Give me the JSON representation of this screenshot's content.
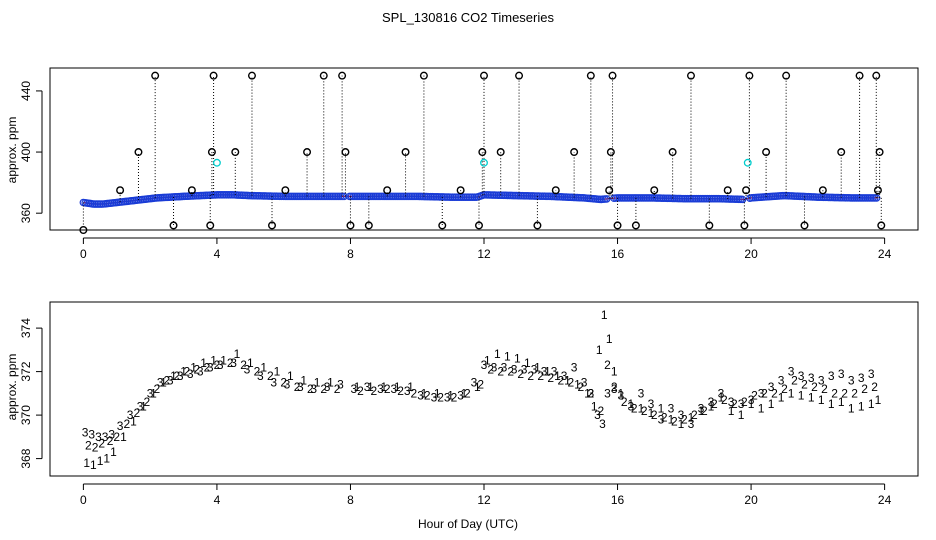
{
  "title": "SPL_130816  CO2 Timeseries",
  "chart_data": [
    {
      "type": "scatter",
      "name": "upper-panel",
      "ylabel": "approx. ppm",
      "xlabel": "",
      "xlim": [
        -1,
        25
      ],
      "ylim": [
        349,
        455
      ],
      "xticks": [
        0,
        4,
        8,
        12,
        16,
        20,
        24
      ],
      "xtick_labels": [
        "0",
        "4",
        "8",
        "12",
        "16",
        "20",
        "24"
      ],
      "yticks": [
        360,
        400,
        440
      ],
      "ytick_labels": [
        "360",
        "400",
        "440"
      ],
      "baseline_x": [
        0.0,
        0.3,
        0.6,
        1.0,
        1.4,
        1.8,
        2.2,
        2.6,
        3.0,
        3.5,
        4.0,
        4.5,
        5.0,
        6.0,
        7.0,
        8.0,
        9.0,
        10.0,
        11.0,
        11.8,
        12.0,
        13.0,
        14.0,
        15.0,
        15.5,
        16.0,
        17.0,
        18.0,
        19.0,
        19.8,
        20.0,
        21.0,
        22.0,
        23.0,
        23.8
      ],
      "baseline_y": [
        367,
        366,
        366,
        367,
        368,
        369,
        370,
        370.5,
        371,
        371.5,
        372,
        372,
        371.5,
        371,
        371,
        371,
        371,
        371,
        370.5,
        370.5,
        372,
        371.5,
        371,
        370,
        369,
        370,
        370,
        369.5,
        369.5,
        369,
        370,
        371.5,
        370.5,
        370,
        370
      ],
      "spike_x": [
        0.0,
        1.1,
        1.65,
        2.15,
        2.7,
        3.25,
        3.8,
        3.85,
        3.9,
        4.55,
        5.05,
        5.65,
        6.05,
        6.7,
        7.2,
        7.75,
        7.85,
        8.0,
        8.55,
        9.1,
        9.65,
        10.2,
        10.75,
        11.3,
        11.85,
        11.95,
        12.0,
        12.5,
        13.05,
        13.6,
        14.15,
        14.7,
        15.2,
        15.75,
        15.8,
        15.85,
        16.0,
        16.55,
        17.1,
        17.65,
        18.2,
        18.75,
        19.3,
        19.8,
        19.85,
        19.95,
        20.45,
        21.05,
        21.6,
        22.15,
        22.7,
        23.25,
        23.75,
        23.8,
        23.85,
        23.9
      ],
      "spike_y": [
        349,
        375,
        400,
        450,
        352,
        375,
        352,
        400,
        450,
        400,
        450,
        352,
        375,
        400,
        450,
        450,
        400,
        352,
        352,
        375,
        400,
        450,
        352,
        375,
        352,
        400,
        450,
        400,
        450,
        352,
        375,
        400,
        450,
        375,
        400,
        450,
        352,
        352,
        375,
        400,
        450,
        352,
        375,
        352,
        375,
        450,
        400,
        450,
        352,
        375,
        400,
        450,
        450,
        375,
        400,
        352
      ],
      "cyan_points_x": [
        4.0,
        12.0,
        19.9
      ],
      "cyan_points_y": [
        393,
        393,
        393
      ]
    },
    {
      "type": "scatter",
      "name": "lower-panel",
      "ylabel": "approx. ppm",
      "xlabel": "Hour of Day (UTC)",
      "xlim": [
        -1,
        25
      ],
      "ylim": [
        367.2,
        375.2
      ],
      "xticks": [
        0,
        4,
        8,
        12,
        16,
        20,
        24
      ],
      "xtick_labels": [
        "0",
        "4",
        "8",
        "12",
        "16",
        "20",
        "24"
      ],
      "yticks": [
        368,
        370,
        372,
        374
      ],
      "ytick_labels": [
        "368",
        "370",
        "372",
        "374"
      ],
      "series": [
        {
          "name": "1",
          "color": "#e00000",
          "x": [
            0.1,
            0.3,
            0.5,
            0.7,
            0.9,
            1.2,
            1.5,
            1.8,
            2.1,
            2.4,
            2.7,
            3.0,
            3.3,
            3.6,
            3.9,
            4.2,
            4.6,
            5.0,
            5.4,
            5.8,
            6.2,
            6.6,
            7.0,
            7.4,
            8.2,
            8.6,
            9.0,
            9.4,
            9.8,
            10.2,
            10.6,
            11.0,
            11.4,
            11.8,
            12.1,
            12.4,
            12.7,
            13.0,
            13.3,
            13.6,
            13.9,
            14.2,
            14.5,
            14.8,
            15.1,
            15.3,
            15.45,
            15.6,
            15.75,
            15.9,
            16.1,
            16.4,
            16.7,
            17.0,
            17.3,
            17.6,
            17.9,
            18.2,
            18.5,
            18.8,
            19.1,
            19.4,
            19.7,
            20.0,
            20.3,
            20.6,
            20.9,
            21.2,
            21.5,
            21.8,
            22.1,
            22.4,
            22.7,
            23.0,
            23.3,
            23.6,
            23.8
          ],
          "y": [
            367.8,
            367.7,
            367.9,
            368.0,
            368.3,
            369.0,
            369.7,
            370.4,
            371.0,
            371.5,
            371.8,
            372.0,
            372.2,
            372.4,
            372.5,
            372.5,
            372.8,
            372.4,
            372.2,
            372.0,
            371.8,
            371.6,
            371.5,
            371.5,
            371.3,
            371.3,
            371.3,
            371.3,
            371.3,
            371.0,
            371.0,
            370.9,
            371.0,
            371.3,
            372.5,
            372.8,
            372.7,
            372.6,
            372.4,
            372.2,
            372.0,
            371.8,
            371.6,
            371.4,
            371.0,
            370.4,
            373.0,
            374.6,
            373.5,
            372.0,
            371.0,
            370.5,
            370.3,
            370.1,
            370.3,
            369.8,
            369.6,
            369.9,
            370.2,
            370.4,
            370.8,
            370.2,
            370.0,
            370.5,
            370.3,
            370.5,
            370.8,
            371.0,
            370.9,
            370.8,
            370.7,
            370.5,
            370.6,
            370.3,
            370.4,
            370.5,
            370.7
          ]
        },
        {
          "name": "2",
          "color": "#00bb00",
          "x": [
            0.15,
            0.35,
            0.55,
            0.8,
            1.0,
            1.3,
            1.6,
            1.9,
            2.2,
            2.5,
            2.8,
            3.1,
            3.4,
            3.7,
            4.0,
            4.4,
            4.8,
            5.2,
            5.6,
            6.0,
            6.4,
            6.8,
            7.2,
            7.6,
            8.3,
            8.7,
            9.1,
            9.5,
            9.9,
            10.3,
            10.7,
            11.1,
            11.5,
            11.9,
            12.2,
            12.5,
            12.8,
            13.1,
            13.4,
            13.7,
            14.0,
            14.3,
            14.6,
            14.9,
            15.2,
            15.5,
            15.7,
            15.9,
            16.2,
            16.5,
            16.8,
            17.1,
            17.4,
            17.7,
            18.0,
            18.3,
            18.6,
            18.9,
            19.2,
            19.5,
            19.8,
            20.1,
            20.4,
            20.7,
            21.0,
            21.3,
            21.6,
            21.9,
            22.2,
            22.5,
            22.8,
            23.1,
            23.4,
            23.7
          ],
          "y": [
            368.6,
            368.5,
            368.7,
            368.8,
            369.0,
            369.6,
            370.1,
            370.6,
            371.2,
            371.6,
            371.8,
            372.0,
            372.1,
            372.2,
            372.3,
            372.4,
            372.3,
            372.0,
            371.8,
            371.5,
            371.3,
            371.2,
            371.2,
            371.2,
            371.1,
            371.1,
            371.2,
            371.1,
            371.0,
            370.9,
            370.8,
            370.8,
            371.0,
            371.4,
            372.1,
            372.0,
            372.0,
            371.9,
            371.8,
            371.8,
            371.7,
            371.6,
            371.5,
            371.3,
            371.0,
            370.2,
            372.3,
            371.3,
            370.6,
            370.3,
            370.2,
            370.0,
            369.9,
            369.7,
            369.8,
            370.0,
            370.2,
            370.5,
            370.7,
            370.5,
            370.6,
            370.9,
            371.0,
            371.0,
            371.2,
            371.6,
            371.4,
            371.3,
            371.2,
            371.0,
            371.0,
            371.0,
            371.2,
            371.3
          ]
        },
        {
          "name": "3",
          "color": "#0000dd",
          "x": [
            0.05,
            0.25,
            0.45,
            0.65,
            0.85,
            1.1,
            1.4,
            1.7,
            2.0,
            2.3,
            2.6,
            2.9,
            3.2,
            3.5,
            3.8,
            4.1,
            4.5,
            4.9,
            5.3,
            5.7,
            6.1,
            6.5,
            6.9,
            7.3,
            7.7,
            8.1,
            8.5,
            8.9,
            9.3,
            9.7,
            10.1,
            10.5,
            10.9,
            11.3,
            11.7,
            12.0,
            12.3,
            12.6,
            12.9,
            13.2,
            13.5,
            13.8,
            14.1,
            14.4,
            14.7,
            15.0,
            15.2,
            15.4,
            15.55,
            15.7,
            15.9,
            16.1,
            16.4,
            16.7,
            17.0,
            17.3,
            17.6,
            17.9,
            18.2,
            18.5,
            18.8,
            19.1,
            19.4,
            19.7,
            20.0,
            20.3,
            20.6,
            20.9,
            21.2,
            21.5,
            21.8,
            22.1,
            22.4,
            22.7,
            23.0,
            23.3,
            23.6
          ],
          "y": [
            369.2,
            369.1,
            369.0,
            369.0,
            369.1,
            369.5,
            370.0,
            370.4,
            371.0,
            371.5,
            371.6,
            371.8,
            371.9,
            372.0,
            372.2,
            372.3,
            372.4,
            372.1,
            371.8,
            371.5,
            371.4,
            371.3,
            371.2,
            371.3,
            371.4,
            371.2,
            371.3,
            371.2,
            371.2,
            371.1,
            370.9,
            370.8,
            370.8,
            370.9,
            371.5,
            372.3,
            372.2,
            372.2,
            372.1,
            372.1,
            372.1,
            372.0,
            372.0,
            371.8,
            372.2,
            371.5,
            371.0,
            370.0,
            369.6,
            371.0,
            371.2,
            370.9,
            370.4,
            371.0,
            370.5,
            369.8,
            370.3,
            370.0,
            369.6,
            370.3,
            370.6,
            371.0,
            370.6,
            370.5,
            370.7,
            371.0,
            371.3,
            371.6,
            372.0,
            371.8,
            371.7,
            371.6,
            371.8,
            371.9,
            371.6,
            371.7,
            371.9
          ]
        }
      ]
    }
  ]
}
